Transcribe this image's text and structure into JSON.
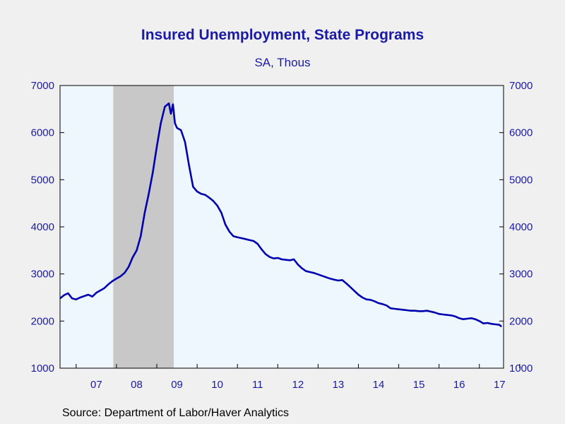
{
  "chart_data": {
    "type": "line",
    "title": "Insured Unemployment, State Programs",
    "subtitle": "SA, Thous",
    "source": "Source:  Department of Labor/Haver Analytics",
    "ylim": [
      1000,
      7000
    ],
    "yticks": [
      1000,
      2000,
      3000,
      4000,
      5000,
      6000,
      7000
    ],
    "xlim": [
      2006.6,
      2017.6
    ],
    "xtick_labels": [
      {
        "label": "07",
        "x": 2007.0
      },
      {
        "label": "08",
        "x": 2008.0
      },
      {
        "label": "09",
        "x": 2009.0
      },
      {
        "label": "10",
        "x": 2010.0
      },
      {
        "label": "11",
        "x": 2011.0
      },
      {
        "label": "12",
        "x": 2012.0
      },
      {
        "label": "13",
        "x": 2013.0
      },
      {
        "label": "14",
        "x": 2014.0
      },
      {
        "label": "15",
        "x": 2015.0
      },
      {
        "label": "16",
        "x": 2016.0
      },
      {
        "label": "17",
        "x": 2017.0
      }
    ],
    "recession": {
      "start": 2007.92,
      "end": 2009.42
    },
    "grid": false,
    "colors": {
      "line": "#0000b0",
      "text": "#1a1aa6",
      "plot_bg": "#eef6fe",
      "recession": "#c8c8c8",
      "page_bg": "#f0f0f0"
    },
    "series": [
      {
        "x": [
          2006.6,
          2006.7,
          2006.8,
          2006.9,
          2007.0,
          2007.1,
          2007.2,
          2007.3,
          2007.4,
          2007.5,
          2007.6,
          2007.7,
          2007.8,
          2007.9,
          2008.0,
          2008.1,
          2008.2,
          2008.3,
          2008.4,
          2008.5,
          2008.6,
          2008.7,
          2008.8,
          2008.9,
          2009.0,
          2009.1,
          2009.2,
          2009.3,
          2009.35,
          2009.4,
          2009.45,
          2009.5,
          2009.6,
          2009.7,
          2009.8,
          2009.9,
          2010.0,
          2010.1,
          2010.2,
          2010.3,
          2010.4,
          2010.5,
          2010.6,
          2010.7,
          2010.8,
          2010.9,
          2011.0,
          2011.1,
          2011.2,
          2011.3,
          2011.4,
          2011.5,
          2011.6,
          2011.7,
          2011.8,
          2011.9,
          2012.0,
          2012.1,
          2012.2,
          2012.3,
          2012.4,
          2012.5,
          2012.6,
          2012.7,
          2012.8,
          2012.9,
          2013.0,
          2013.1,
          2013.2,
          2013.3,
          2013.4,
          2013.5,
          2013.6,
          2013.7,
          2013.8,
          2013.9,
          2014.0,
          2014.1,
          2014.2,
          2014.3,
          2014.4,
          2014.5,
          2014.6,
          2014.7,
          2014.8,
          2014.9,
          2015.0,
          2015.1,
          2015.2,
          2015.3,
          2015.4,
          2015.5,
          2015.6,
          2015.7,
          2015.8,
          2015.9,
          2016.0,
          2016.1,
          2016.2,
          2016.3,
          2016.4,
          2016.5,
          2016.6,
          2016.7,
          2016.8,
          2016.9,
          2017.0,
          2017.1,
          2017.2,
          2017.3,
          2017.4,
          2017.5,
          2017.55
        ],
        "values": [
          2480,
          2550,
          2590,
          2480,
          2460,
          2500,
          2530,
          2560,
          2520,
          2600,
          2650,
          2700,
          2780,
          2850,
          2900,
          2950,
          3020,
          3150,
          3350,
          3500,
          3800,
          4300,
          4700,
          5150,
          5700,
          6200,
          6550,
          6620,
          6400,
          6600,
          6200,
          6100,
          6050,
          5800,
          5300,
          4850,
          4750,
          4700,
          4680,
          4620,
          4550,
          4450,
          4300,
          4050,
          3900,
          3800,
          3780,
          3760,
          3740,
          3720,
          3700,
          3640,
          3520,
          3420,
          3360,
          3330,
          3340,
          3310,
          3300,
          3290,
          3310,
          3200,
          3120,
          3060,
          3040,
          3020,
          2990,
          2960,
          2930,
          2900,
          2880,
          2860,
          2870,
          2800,
          2720,
          2640,
          2560,
          2500,
          2460,
          2450,
          2420,
          2380,
          2360,
          2330,
          2270,
          2260,
          2250,
          2240,
          2230,
          2220,
          2220,
          2210,
          2210,
          2220,
          2200,
          2180,
          2150,
          2140,
          2130,
          2120,
          2100,
          2060,
          2040,
          2050,
          2060,
          2040,
          2000,
          1950,
          1960,
          1940,
          1930,
          1920,
          1880
        ]
      }
    ]
  }
}
